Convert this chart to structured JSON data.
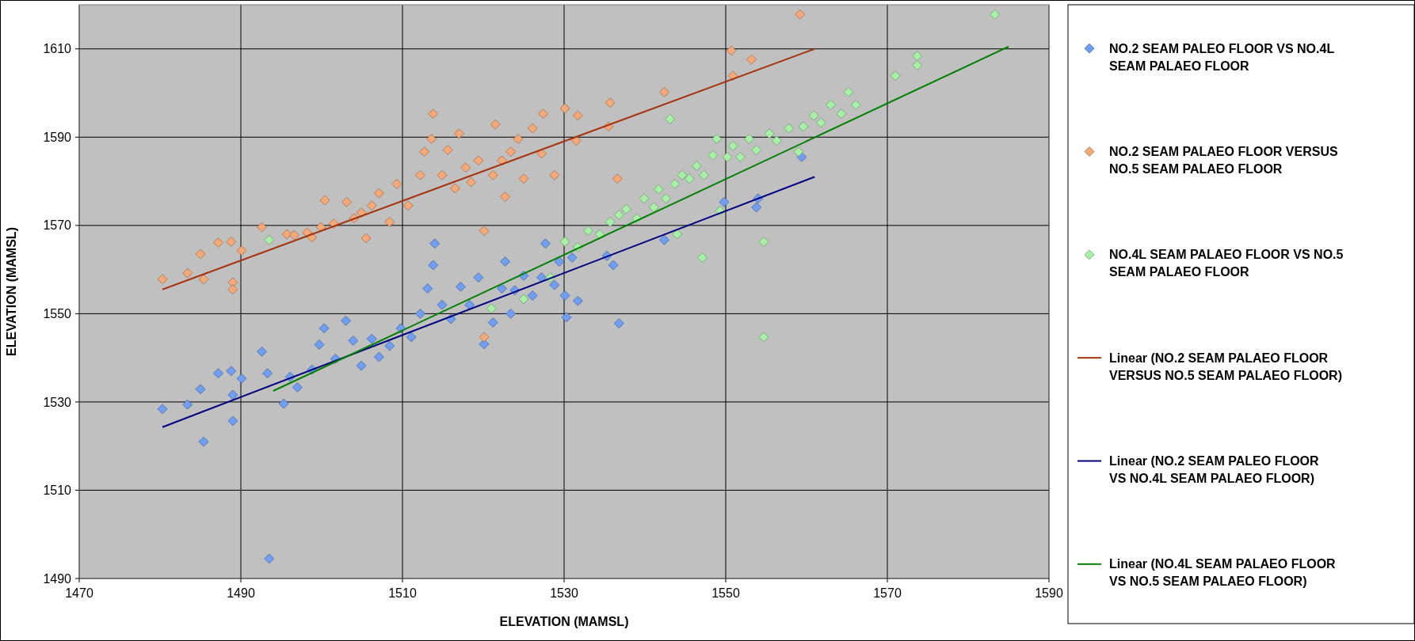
{
  "chart_data": {
    "type": "scatter",
    "xlabel": "ELEVATION (MAMSL)",
    "ylabel": "ELEVATION (MAMSL)",
    "xlim": [
      1470,
      1590
    ],
    "ylim": [
      1490,
      1620
    ],
    "xticks": [
      1470,
      1490,
      1510,
      1530,
      1550,
      1570,
      1590
    ],
    "yticks": [
      1490,
      1510,
      1530,
      1550,
      1570,
      1590,
      1610
    ],
    "grid": true,
    "legend": "right",
    "marker": "diamond",
    "series": [
      {
        "name": "NO.2 SEAM PALEO FLOOR VS NO.4L SEAM PALAEO FLOOR",
        "color": "#6f9ef2",
        "x": [
          1480.3,
          1483.4,
          1485,
          1485.4,
          1487.2,
          1488.8,
          1489,
          1489,
          1490.1,
          1492.6,
          1493.3,
          1493.5,
          1495.3,
          1496.1,
          1497,
          1498.8,
          1499.7,
          1500.3,
          1501.7,
          1503,
          1503.9,
          1504.9,
          1506.2,
          1507.1,
          1508.4,
          1509.8,
          1511.1,
          1512.2,
          1513.1,
          1513.8,
          1514,
          1514.9,
          1516,
          1517.2,
          1518.3,
          1519.4,
          1520.1,
          1521.2,
          1522.3,
          1522.7,
          1523.4,
          1523.9,
          1525,
          1526.1,
          1527.2,
          1527.7,
          1528.8,
          1529.4,
          1530.1,
          1530.3,
          1531,
          1531.7,
          1535.3,
          1536.1,
          1536.8,
          1542.4,
          1549.8,
          1554,
          1553.8,
          1559.4
        ],
        "values": [
          1528.4,
          1529.4,
          1532.9,
          1521,
          1536.5,
          1537,
          1531.6,
          1525.7,
          1535.3,
          1541.4,
          1536.5,
          1494.5,
          1529.6,
          1535.7,
          1533.3,
          1537.3,
          1543,
          1546.7,
          1539.8,
          1548.4,
          1543.9,
          1538.2,
          1544.3,
          1540.2,
          1542.7,
          1546.7,
          1544.7,
          1550,
          1555.7,
          1561,
          1565.9,
          1552,
          1548.8,
          1556.1,
          1552,
          1558.2,
          1543.1,
          1548,
          1555.7,
          1561.8,
          1550,
          1555.3,
          1558.6,
          1554.1,
          1558.2,
          1565.9,
          1556.5,
          1561.8,
          1554.1,
          1549.2,
          1562.7,
          1552.9,
          1563.1,
          1561,
          1547.8,
          1566.7,
          1575.3,
          1576.1,
          1574.1,
          1585.5
        ]
      },
      {
        "name": "NO.2 SEAM PALAEO FLOOR VERSUS NO.5 SEAM PALAEO FLOOR",
        "color": "#f5a878",
        "x": [
          1480.3,
          1483.4,
          1485,
          1485.4,
          1487.2,
          1488.8,
          1489,
          1489,
          1490.1,
          1492.6,
          1495.7,
          1496.6,
          1498.2,
          1498.8,
          1499.9,
          1500.4,
          1501.5,
          1503.1,
          1504,
          1504.9,
          1505.5,
          1506.2,
          1507.1,
          1508.4,
          1509.3,
          1510.7,
          1512.2,
          1512.7,
          1513.6,
          1513.8,
          1514.9,
          1515.6,
          1516.5,
          1517,
          1517.8,
          1518.5,
          1519.4,
          1520.1,
          1520.1,
          1521.2,
          1521.5,
          1522.3,
          1522.7,
          1523.4,
          1524.3,
          1525,
          1526.1,
          1527.2,
          1527.4,
          1528.8,
          1530.1,
          1531.5,
          1531.7,
          1535.5,
          1535.7,
          1536.6,
          1542.4,
          1550.7,
          1550.9,
          1553.2,
          1559.2
        ],
        "values": [
          1557.8,
          1559.2,
          1563.5,
          1557.8,
          1566.1,
          1566.3,
          1557.1,
          1555.5,
          1564.3,
          1569.6,
          1568,
          1567.8,
          1568.4,
          1567.3,
          1569.6,
          1575.7,
          1570.4,
          1575.3,
          1571.6,
          1572.9,
          1567.1,
          1574.5,
          1577.3,
          1570.8,
          1579.4,
          1574.5,
          1581.4,
          1586.7,
          1589.6,
          1595.3,
          1581.4,
          1587.1,
          1578.4,
          1590.8,
          1583.1,
          1579.8,
          1584.7,
          1568.8,
          1544.7,
          1581.4,
          1592.9,
          1584.7,
          1576.5,
          1586.7,
          1589.6,
          1580.6,
          1592,
          1586.3,
          1595.3,
          1581.4,
          1596.5,
          1589.2,
          1594.9,
          1592.4,
          1597.8,
          1580.6,
          1600.2,
          1609.6,
          1603.9,
          1607.6,
          1617.8
        ]
      },
      {
        "name": "NO.4L SEAM PALAEO FLOOR VS NO.5 SEAM PALAEO FLOOR",
        "color": "#a8f0a8",
        "x": [
          1493.5,
          1521,
          1525,
          1528.3,
          1530.1,
          1531.7,
          1533,
          1534.4,
          1535.7,
          1536.8,
          1537.7,
          1539,
          1539.9,
          1541.1,
          1541.7,
          1542.6,
          1543.1,
          1543.7,
          1544,
          1544.6,
          1545.5,
          1546.4,
          1547.1,
          1547.3,
          1548.4,
          1548.9,
          1549.3,
          1550.2,
          1550.9,
          1551.8,
          1552.9,
          1553.8,
          1554.7,
          1554.7,
          1555.4,
          1556.3,
          1557.8,
          1559,
          1559.6,
          1560.9,
          1561.8,
          1563,
          1564.3,
          1565.2,
          1566.1,
          1571,
          1573.7,
          1573.7,
          1583.3
        ],
        "values": [
          1566.7,
          1551.2,
          1553.3,
          1558.2,
          1566.3,
          1565.1,
          1568.8,
          1568,
          1570.8,
          1572.4,
          1573.7,
          1571.6,
          1576.1,
          1574.1,
          1578.2,
          1576.1,
          1594.1,
          1579.4,
          1568,
          1581.4,
          1580.6,
          1583.5,
          1562.7,
          1581.4,
          1585.9,
          1589.6,
          1573.3,
          1585.5,
          1588,
          1585.5,
          1589.6,
          1587.1,
          1566.3,
          1544.7,
          1590.8,
          1589.2,
          1592,
          1586.7,
          1592.4,
          1594.9,
          1593.3,
          1597.3,
          1595.3,
          1600.2,
          1597.3,
          1603.9,
          1608.4,
          1606.3,
          1617.8
        ]
      },
      {
        "name": "Linear (NO.2 SEAM PALAEO FLOOR VERSUS NO.5 SEAM PALAEO FLOOR)",
        "type": "line",
        "marker": "none",
        "color": "#a5330e",
        "x": [
          1480.3,
          1561
        ],
        "values": [
          1555.5,
          1610
        ]
      },
      {
        "name": "Linear (NO.2 SEAM PALEO FLOOR VS NO.4L SEAM PALAEO FLOOR)",
        "type": "line",
        "marker": "none",
        "color": "#000080",
        "x": [
          1480.3,
          1561
        ],
        "values": [
          1524.3,
          1581
        ]
      },
      {
        "name": "Linear (NO.4L SEAM PALAEO FLOOR VS NO.5 SEAM PALAEO FLOOR)",
        "type": "line",
        "marker": "none",
        "color": "#008000",
        "x": [
          1494,
          1585
        ],
        "values": [
          1532.5,
          1610.5
        ]
      }
    ]
  }
}
